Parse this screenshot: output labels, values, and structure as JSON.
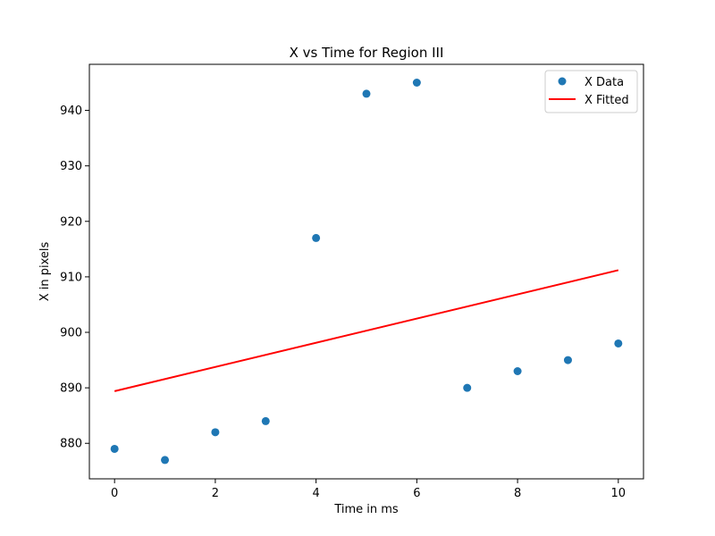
{
  "chart_data": {
    "type": "scatter",
    "title": "X vs Time for Region III",
    "xlabel": "Time in ms",
    "ylabel": "X in pixels",
    "xlim": [
      -0.5,
      10.5
    ],
    "ylim": [
      873.6,
      948.3
    ],
    "xticks": [
      0,
      2,
      4,
      6,
      8,
      10
    ],
    "yticks": [
      880,
      890,
      900,
      910,
      920,
      930,
      940
    ],
    "grid": false,
    "legend_position": "top-right",
    "series": [
      {
        "name": "X Data",
        "kind": "scatter",
        "color": "#1f77b4",
        "x": [
          0,
          1,
          2,
          3,
          4,
          5,
          6,
          7,
          8,
          9,
          10
        ],
        "y": [
          879,
          877,
          882,
          884,
          917,
          943,
          945,
          890,
          893,
          895,
          898
        ]
      },
      {
        "name": "X Fitted",
        "kind": "line",
        "color": "#ff0000",
        "x": [
          0,
          10
        ],
        "y": [
          889.4,
          911.2
        ]
      }
    ]
  }
}
